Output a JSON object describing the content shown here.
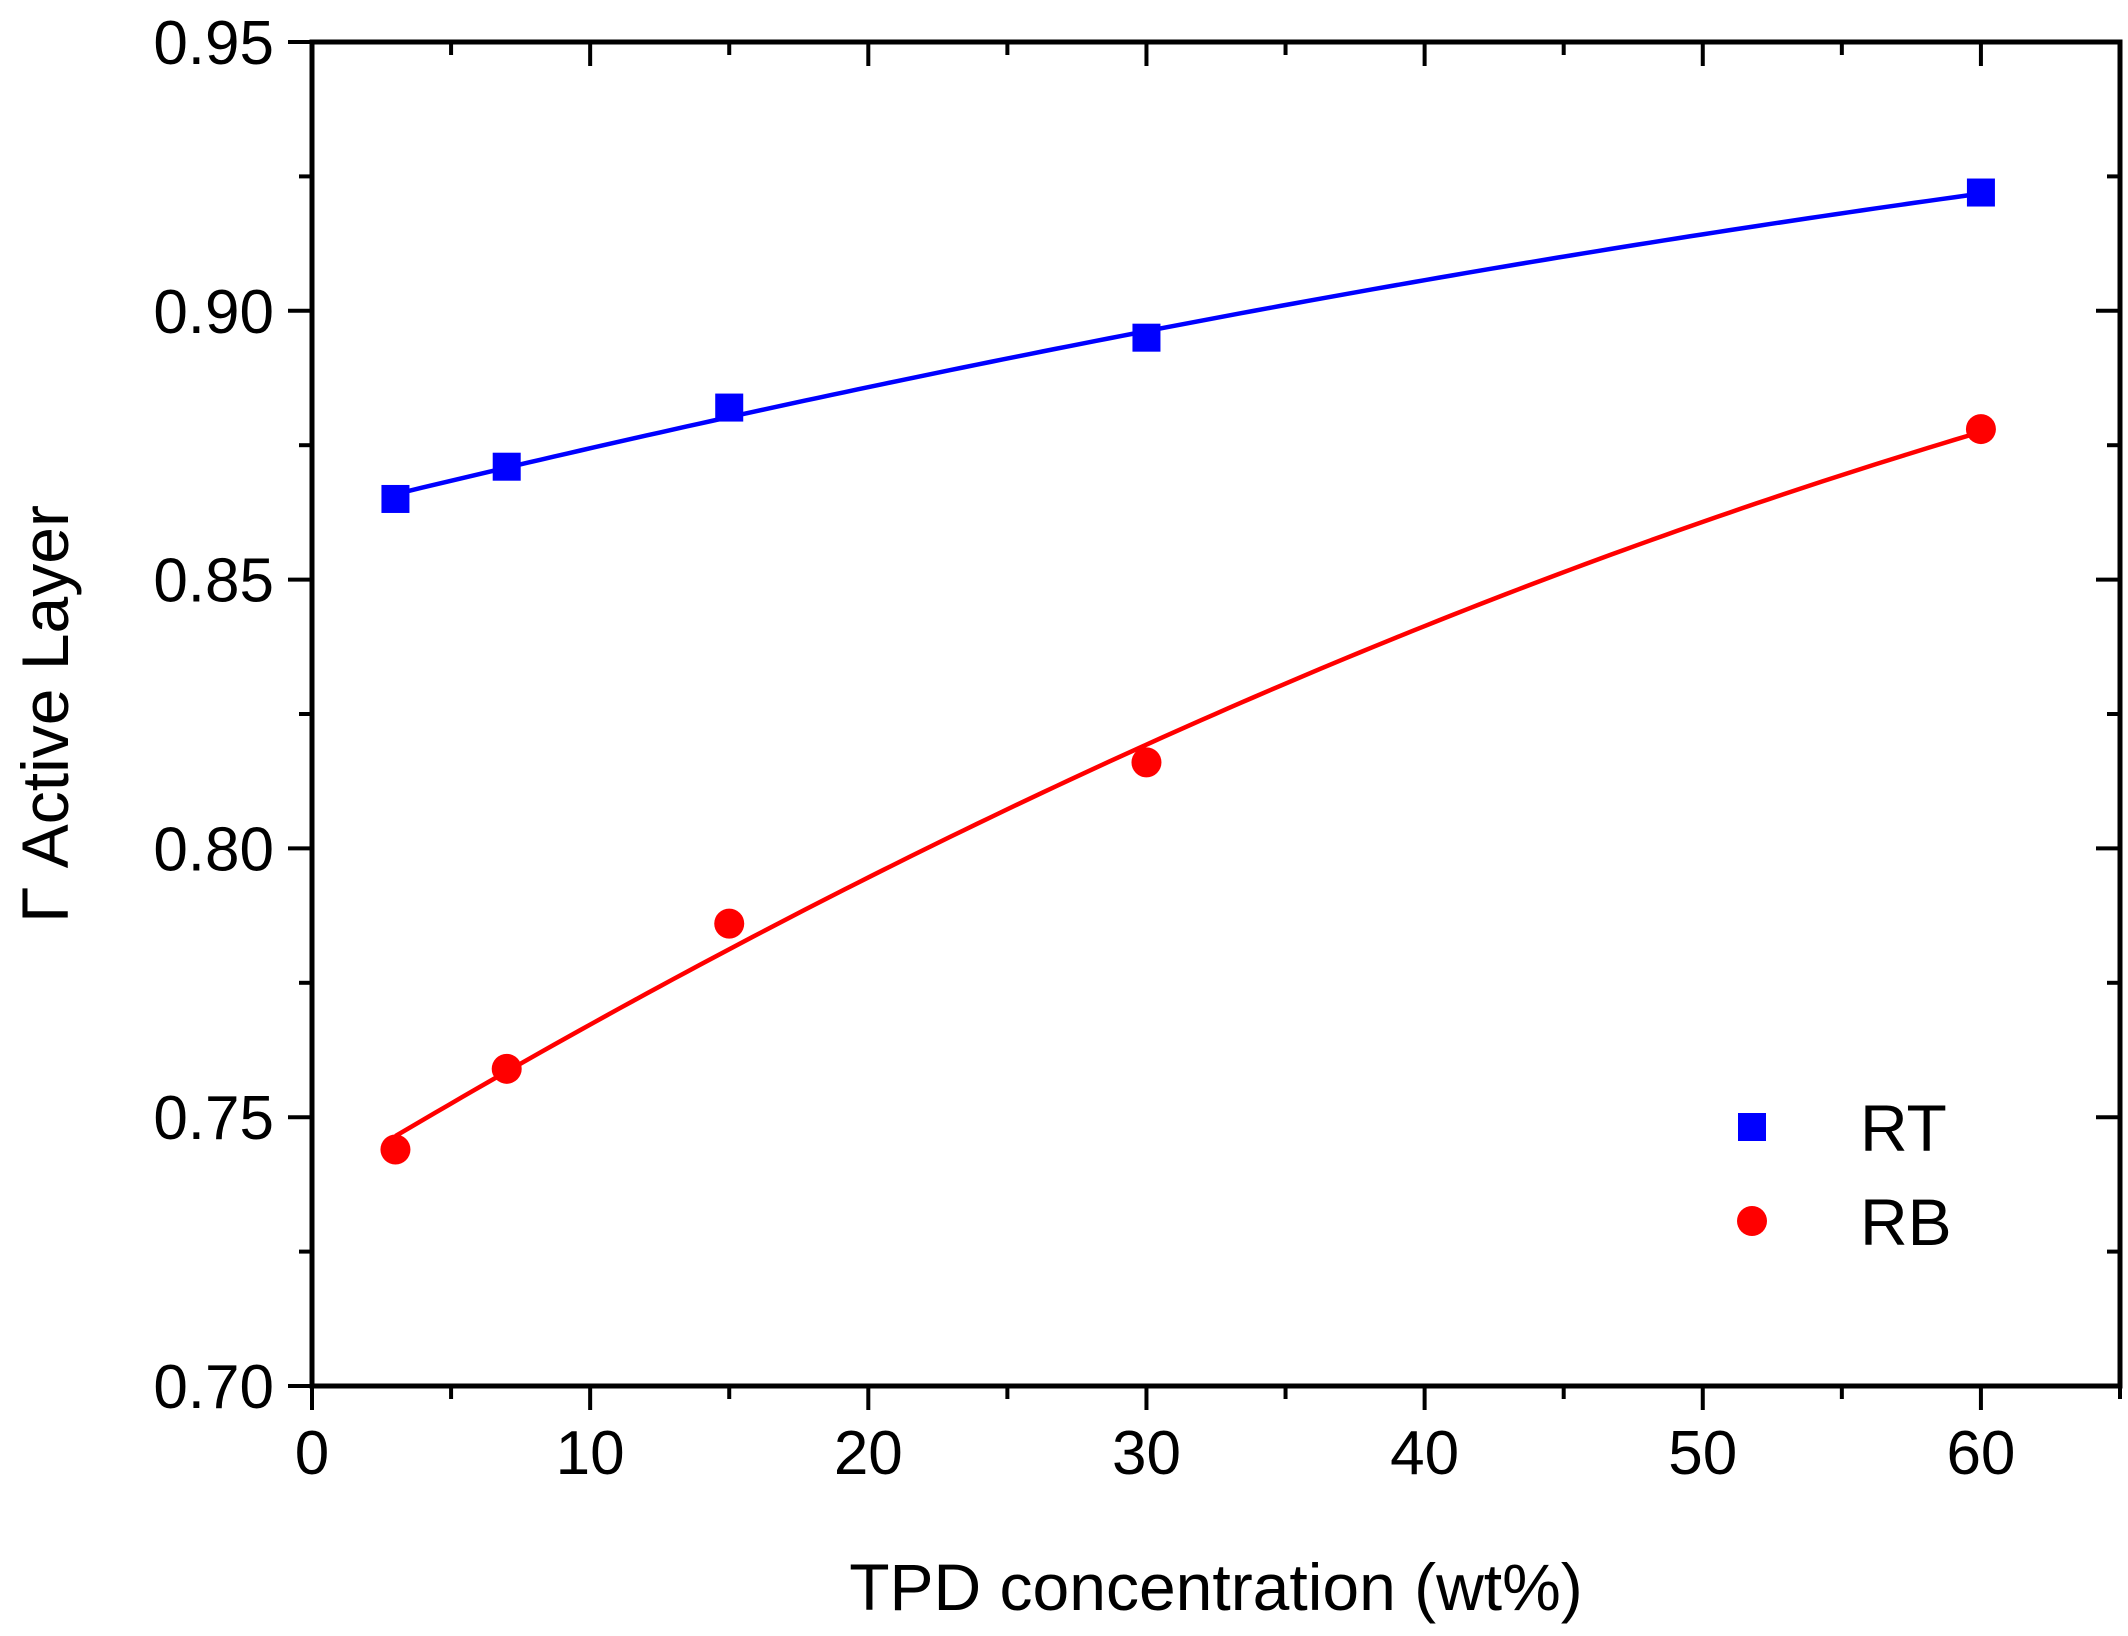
{
  "chart_data": {
    "type": "scatter",
    "xlabel": "TPD concentration (wt%)",
    "ylabel": "Γ Active Layer",
    "xlim": [
      0,
      65
    ],
    "ylim": [
      0.7,
      0.95
    ],
    "x_ticks": [
      0,
      10,
      20,
      30,
      40,
      50,
      60
    ],
    "x_tick_labels": [
      "0",
      "10",
      "20",
      "30",
      "40",
      "50",
      "60"
    ],
    "y_ticks": [
      0.7,
      0.75,
      0.8,
      0.85,
      0.9,
      0.95
    ],
    "y_tick_labels": [
      "0.70",
      "0.75",
      "0.80",
      "0.85",
      "0.90",
      "0.95"
    ],
    "legend_position": "bottom-right",
    "series": [
      {
        "name": "RT",
        "marker": "square",
        "color": "#0000ff",
        "x": [
          3,
          7,
          15,
          30,
          60
        ],
        "y": [
          0.865,
          0.871,
          0.882,
          0.895,
          0.922
        ],
        "fit_curve": true
      },
      {
        "name": "RB",
        "marker": "circle",
        "color": "#ff0000",
        "x": [
          3,
          7,
          15,
          30,
          60
        ],
        "y": [
          0.744,
          0.759,
          0.786,
          0.816,
          0.878
        ],
        "fit_curve": true
      }
    ]
  }
}
